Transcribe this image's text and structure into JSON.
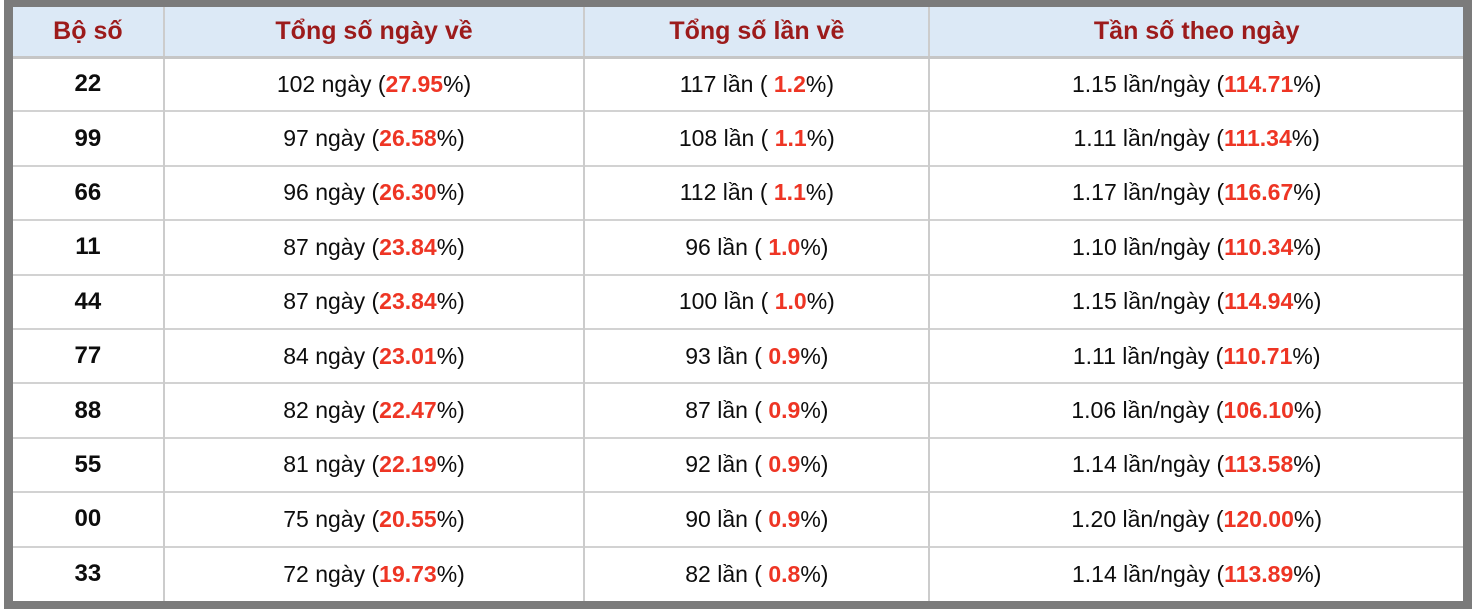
{
  "colors": {
    "accent_red": "#ee3524",
    "header_text_red": "#9c1b1b",
    "header_bg_blue": "#dce9f6",
    "frame_gray": "#7b7b7b",
    "grid_line_gray": "#cccccc"
  },
  "header": {
    "columns": [
      "Bộ số",
      "Tổng số ngày về",
      "Tổng số lần về",
      "Tần số theo ngày"
    ]
  },
  "rows": [
    {
      "pair": "22",
      "days_pre": "102 ngày (",
      "days_pct": "27.95",
      "days_post": "%)",
      "times_pre": "117 lần ( ",
      "times_pct": "1.2",
      "times_post": "%)",
      "freq_pre": "1.15 lần/ngày (",
      "freq_pct": "114.71",
      "freq_post": "%)"
    },
    {
      "pair": "99",
      "days_pre": "97 ngày (",
      "days_pct": "26.58",
      "days_post": "%)",
      "times_pre": "108 lần ( ",
      "times_pct": "1.1",
      "times_post": "%)",
      "freq_pre": "1.11 lần/ngày (",
      "freq_pct": "111.34",
      "freq_post": "%)"
    },
    {
      "pair": "66",
      "days_pre": "96 ngày (",
      "days_pct": "26.30",
      "days_post": "%)",
      "times_pre": "112 lần ( ",
      "times_pct": "1.1",
      "times_post": "%)",
      "freq_pre": "1.17 lần/ngày (",
      "freq_pct": "116.67",
      "freq_post": "%)"
    },
    {
      "pair": "11",
      "days_pre": "87 ngày (",
      "days_pct": "23.84",
      "days_post": "%)",
      "times_pre": "96 lần ( ",
      "times_pct": "1.0",
      "times_post": "%)",
      "freq_pre": "1.10 lần/ngày (",
      "freq_pct": "110.34",
      "freq_post": "%)"
    },
    {
      "pair": "44",
      "days_pre": "87 ngày (",
      "days_pct": "23.84",
      "days_post": "%)",
      "times_pre": "100 lần ( ",
      "times_pct": "1.0",
      "times_post": "%)",
      "freq_pre": "1.15 lần/ngày (",
      "freq_pct": "114.94",
      "freq_post": "%)"
    },
    {
      "pair": "77",
      "days_pre": "84 ngày (",
      "days_pct": "23.01",
      "days_post": "%)",
      "times_pre": "93 lần ( ",
      "times_pct": "0.9",
      "times_post": "%)",
      "freq_pre": "1.11 lần/ngày (",
      "freq_pct": "110.71",
      "freq_post": "%)"
    },
    {
      "pair": "88",
      "days_pre": "82 ngày (",
      "days_pct": "22.47",
      "days_post": "%)",
      "times_pre": "87 lần ( ",
      "times_pct": "0.9",
      "times_post": "%)",
      "freq_pre": "1.06 lần/ngày (",
      "freq_pct": "106.10",
      "freq_post": "%)"
    },
    {
      "pair": "55",
      "days_pre": "81 ngày (",
      "days_pct": "22.19",
      "days_post": "%)",
      "times_pre": "92 lần ( ",
      "times_pct": "0.9",
      "times_post": "%)",
      "freq_pre": "1.14 lần/ngày (",
      "freq_pct": "113.58",
      "freq_post": "%)"
    },
    {
      "pair": "00",
      "days_pre": "75 ngày (",
      "days_pct": "20.55",
      "days_post": "%)",
      "times_pre": "90 lần ( ",
      "times_pct": "0.9",
      "times_post": "%)",
      "freq_pre": "1.20 lần/ngày (",
      "freq_pct": "120.00",
      "freq_post": "%)"
    },
    {
      "pair": "33",
      "days_pre": "72 ngày (",
      "days_pct": "19.73",
      "days_post": "%)",
      "times_pre": "82 lần ( ",
      "times_pct": "0.8",
      "times_post": "%)",
      "freq_pre": "1.14 lần/ngày (",
      "freq_pct": "113.89",
      "freq_post": "%)"
    }
  ]
}
